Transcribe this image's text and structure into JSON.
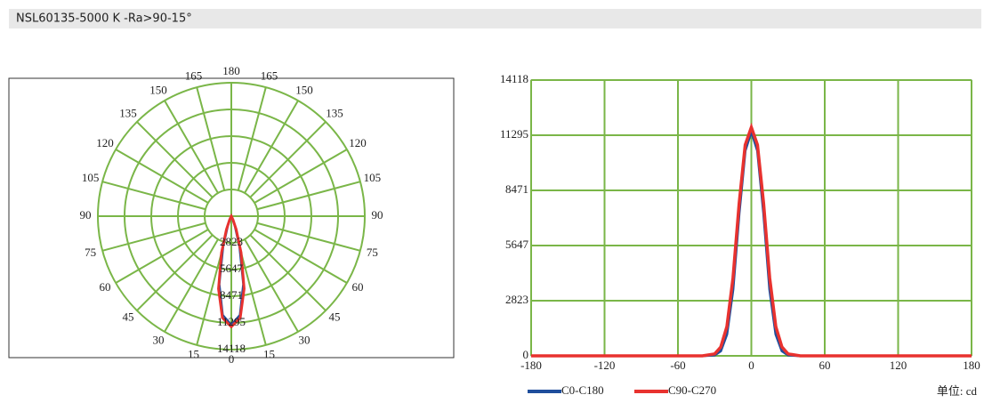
{
  "header": {
    "title": "NSL60135-5000 K -Ra>90-15°"
  },
  "chart_data": [
    {
      "type": "polar",
      "angle_ticks": [
        0,
        15,
        30,
        45,
        60,
        75,
        90,
        105,
        120,
        135,
        150,
        165,
        180
      ],
      "rlim": [
        0,
        14118
      ],
      "rticks": [
        2823,
        5647,
        8471,
        11295,
        14118
      ],
      "grid_color": "#7ab648",
      "series": [
        {
          "name": "C0-C180",
          "color": "#1f4e9c",
          "theta": [
            -90,
            -40,
            -30,
            -25,
            -20,
            -15,
            -10,
            -5,
            0,
            5,
            10,
            15,
            20,
            25,
            30,
            40,
            90
          ],
          "values": [
            0,
            0,
            40,
            250,
            1100,
            3400,
            7300,
            10500,
            11500,
            10500,
            7300,
            3400,
            1100,
            250,
            40,
            0,
            0
          ]
        },
        {
          "name": "C90-C270",
          "color": "#e8322f",
          "theta": [
            -90,
            -40,
            -30,
            -25,
            -20,
            -15,
            -10,
            -5,
            0,
            5,
            10,
            15,
            20,
            25,
            30,
            40,
            90
          ],
          "values": [
            0,
            0,
            100,
            450,
            1500,
            4000,
            7800,
            10800,
            11700,
            10800,
            7800,
            4000,
            1500,
            450,
            100,
            0,
            0
          ]
        }
      ]
    },
    {
      "type": "line",
      "xlim": [
        -180,
        180
      ],
      "xticks": [
        -180,
        -120,
        -60,
        0,
        60,
        120,
        180
      ],
      "ylim": [
        0,
        14118
      ],
      "yticks": [
        0,
        2823,
        5647,
        8471,
        11295,
        14118
      ],
      "grid": true,
      "grid_color": "#7ab648",
      "unit": "单位: cd",
      "x": [
        -180,
        -90,
        -40,
        -30,
        -25,
        -20,
        -15,
        -10,
        -5,
        0,
        5,
        10,
        15,
        20,
        25,
        30,
        40,
        90,
        180
      ],
      "series": [
        {
          "name": "C0-C180",
          "color": "#1f4e9c",
          "values": [
            0,
            0,
            0,
            40,
            250,
            1100,
            3400,
            7300,
            10500,
            11500,
            10500,
            7300,
            3400,
            1100,
            250,
            40,
            0,
            0,
            0
          ]
        },
        {
          "name": "C90-C270",
          "color": "#e8322f",
          "values": [
            0,
            0,
            0,
            100,
            450,
            1500,
            4000,
            7800,
            10800,
            11700,
            10800,
            7800,
            4000,
            1500,
            450,
            100,
            0,
            0,
            0
          ]
        }
      ]
    }
  ]
}
